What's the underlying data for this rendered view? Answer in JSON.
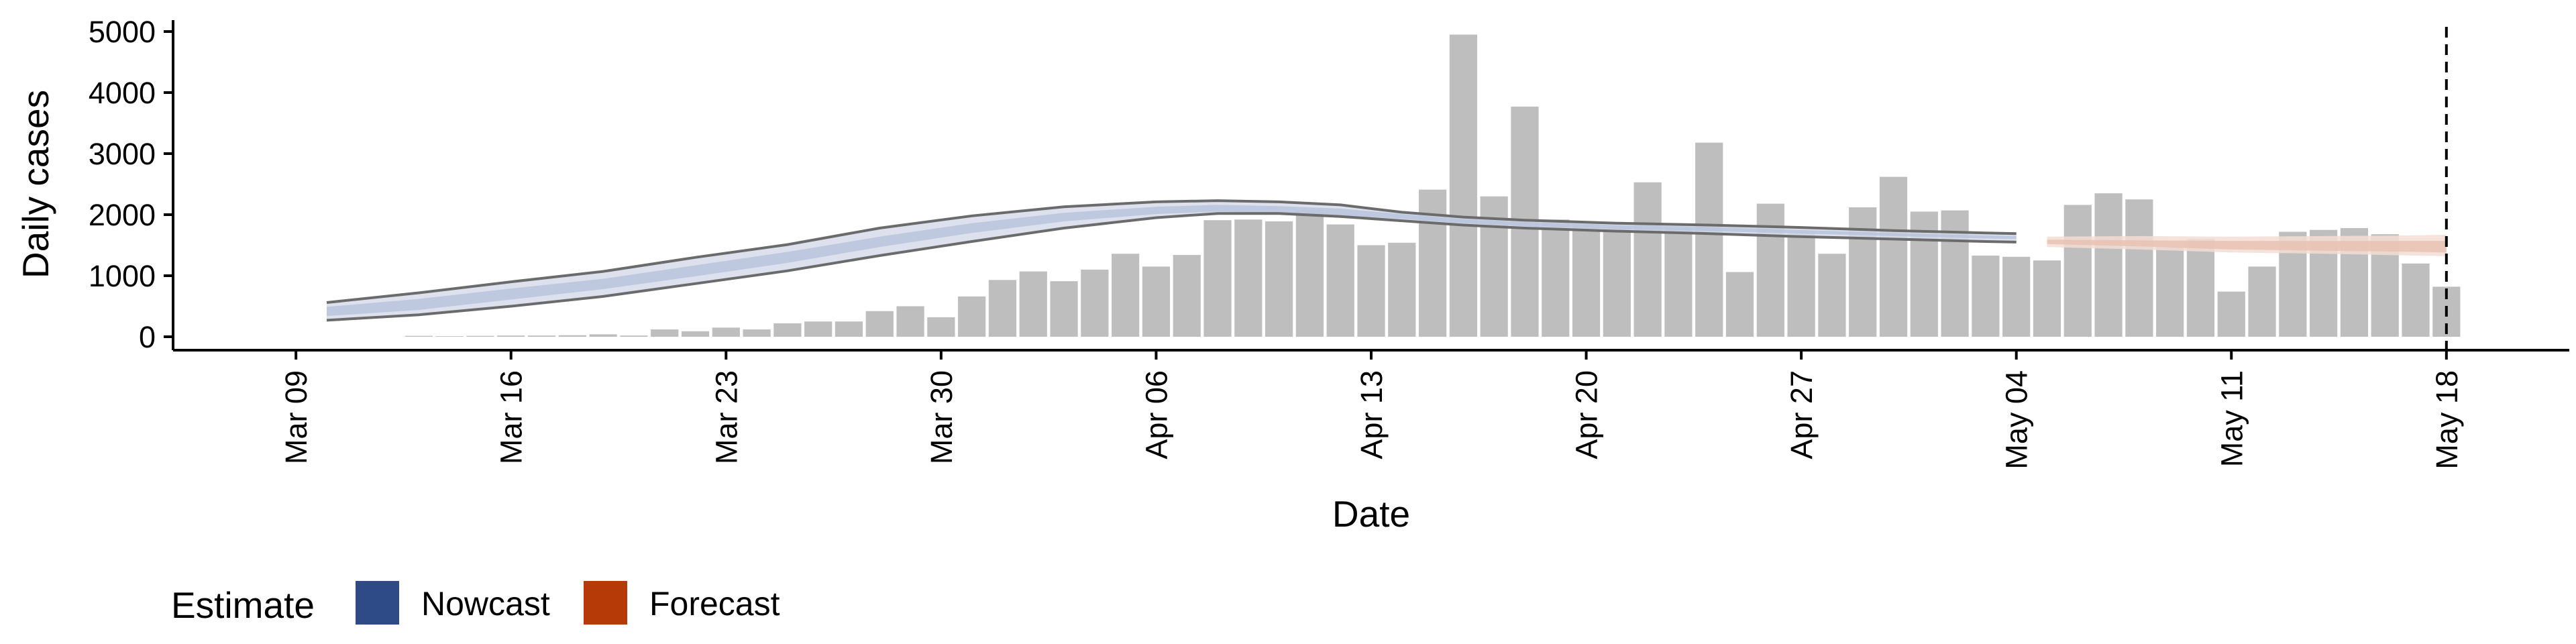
{
  "chart_data": {
    "type": "bar",
    "xlabel": "Date",
    "ylabel": "Daily cases",
    "ylim": [
      0,
      5000
    ],
    "y_ticks": [
      "0",
      "1000",
      "2000",
      "3000",
      "4000",
      "5000"
    ],
    "x_ticks": [
      {
        "date": "2020-03-09",
        "label": "Mar 09"
      },
      {
        "date": "2020-03-16",
        "label": "Mar 16"
      },
      {
        "date": "2020-03-23",
        "label": "Mar 23"
      },
      {
        "date": "2020-03-30",
        "label": "Mar 30"
      },
      {
        "date": "2020-04-06",
        "label": "Apr 06"
      },
      {
        "date": "2020-04-13",
        "label": "Apr 13"
      },
      {
        "date": "2020-04-20",
        "label": "Apr 20"
      },
      {
        "date": "2020-04-27",
        "label": "Apr 27"
      },
      {
        "date": "2020-05-04",
        "label": "May 04"
      },
      {
        "date": "2020-05-11",
        "label": "May 11"
      },
      {
        "date": "2020-05-18",
        "label": "May 18"
      }
    ],
    "xlim": [
      "2020-03-05",
      "2020-05-22"
    ],
    "vline_date": "2020-05-18",
    "bars": {
      "dates": [
        "2020-03-13",
        "2020-03-14",
        "2020-03-15",
        "2020-03-16",
        "2020-03-17",
        "2020-03-18",
        "2020-03-19",
        "2020-03-20",
        "2020-03-21",
        "2020-03-22",
        "2020-03-23",
        "2020-03-24",
        "2020-03-25",
        "2020-03-26",
        "2020-03-27",
        "2020-03-28",
        "2020-03-29",
        "2020-03-30",
        "2020-03-31",
        "2020-04-01",
        "2020-04-02",
        "2020-04-03",
        "2020-04-04",
        "2020-04-05",
        "2020-04-06",
        "2020-04-07",
        "2020-04-08",
        "2020-04-09",
        "2020-04-10",
        "2020-04-11",
        "2020-04-12",
        "2020-04-13",
        "2020-04-14",
        "2020-04-15",
        "2020-04-16",
        "2020-04-17",
        "2020-04-18",
        "2020-04-19",
        "2020-04-20",
        "2020-04-21",
        "2020-04-22",
        "2020-04-23",
        "2020-04-24",
        "2020-04-25",
        "2020-04-26",
        "2020-04-27",
        "2020-04-28",
        "2020-04-29",
        "2020-04-30",
        "2020-05-01",
        "2020-05-02",
        "2020-05-03",
        "2020-05-04",
        "2020-05-05",
        "2020-05-06",
        "2020-05-07",
        "2020-05-08",
        "2020-05-09",
        "2020-05-10",
        "2020-05-11",
        "2020-05-12",
        "2020-05-13",
        "2020-05-14",
        "2020-05-15",
        "2020-05-16",
        "2020-05-17",
        "2020-05-18"
      ],
      "values": [
        15,
        10,
        15,
        20,
        20,
        25,
        40,
        20,
        120,
        90,
        150,
        120,
        220,
        250,
        250,
        420,
        500,
        320,
        660,
        930,
        1070,
        910,
        1100,
        1360,
        1150,
        1340,
        1910,
        1920,
        1890,
        2080,
        1840,
        1500,
        1540,
        2410,
        4950,
        2300,
        3770,
        1920,
        1850,
        1800,
        2530,
        1780,
        3180,
        1060,
        2180,
        1700,
        1360,
        2120,
        2620,
        2050,
        2070,
        1330,
        1310,
        1250,
        2160,
        2350,
        2250,
        1480,
        1600,
        740,
        1150,
        1720,
        1750,
        1780,
        1680,
        1200,
        820
      ]
    },
    "series": [
      {
        "name": "Nowcast",
        "dates": [
          "2020-03-10",
          "2020-03-13",
          "2020-03-16",
          "2020-03-19",
          "2020-03-22",
          "2020-03-25",
          "2020-03-28",
          "2020-03-31",
          "2020-04-03",
          "2020-04-06",
          "2020-04-08",
          "2020-04-10",
          "2020-04-12",
          "2020-04-14",
          "2020-04-16",
          "2020-04-18",
          "2020-04-21",
          "2020-04-24",
          "2020-04-27",
          "2020-04-30",
          "2020-05-03",
          "2020-05-04"
        ],
        "lower": [
          270,
          360,
          500,
          660,
          870,
          1080,
          1330,
          1560,
          1780,
          1950,
          2020,
          2020,
          1970,
          1900,
          1830,
          1780,
          1730,
          1690,
          1640,
          1600,
          1560,
          1550
        ],
        "upper": [
          560,
          720,
          900,
          1070,
          1300,
          1510,
          1780,
          1980,
          2130,
          2210,
          2230,
          2210,
          2160,
          2040,
          1960,
          1910,
          1860,
          1830,
          1790,
          1740,
          1700,
          1690
        ],
        "inner_lower": [
          340,
          440,
          610,
          780,
          990,
          1210,
          1470,
          1700,
          1890,
          2010,
          2050,
          2030,
          1990,
          1930,
          1860,
          1810,
          1760,
          1730,
          1690,
          1650,
          1610,
          1600
        ],
        "inner_upper": [
          490,
          620,
          790,
          950,
          1170,
          1390,
          1640,
          1860,
          2030,
          2130,
          2160,
          2140,
          2100,
          2010,
          1930,
          1880,
          1830,
          1800,
          1750,
          1700,
          1660,
          1650
        ]
      },
      {
        "name": "Forecast",
        "dates": [
          "2020-05-05",
          "2020-05-08",
          "2020-05-11",
          "2020-05-14",
          "2020-05-17",
          "2020-05-18"
        ],
        "lower": [
          1470,
          1430,
          1380,
          1360,
          1330,
          1320
        ],
        "upper": [
          1640,
          1650,
          1640,
          1650,
          1660,
          1670
        ],
        "inner_lower": [
          1520,
          1480,
          1430,
          1410,
          1390,
          1380
        ],
        "inner_upper": [
          1590,
          1580,
          1570,
          1570,
          1570,
          1570
        ]
      }
    ],
    "legend": {
      "title": "Estimate",
      "position": "bottom-left",
      "items": [
        {
          "label": "Nowcast",
          "color": "#2f4b87"
        },
        {
          "label": "Forecast",
          "color": "#b53a08"
        }
      ]
    },
    "colors": {
      "bar": "#bebebe",
      "nowcast_outer": "#d6dcea",
      "nowcast_inner": "#b9c4dc",
      "nowcast_line": "#6b6b6b",
      "forecast_outer": "#f2ddd5",
      "forecast_inner": "#e9c2b3",
      "forecast_line": "#a08078"
    }
  }
}
